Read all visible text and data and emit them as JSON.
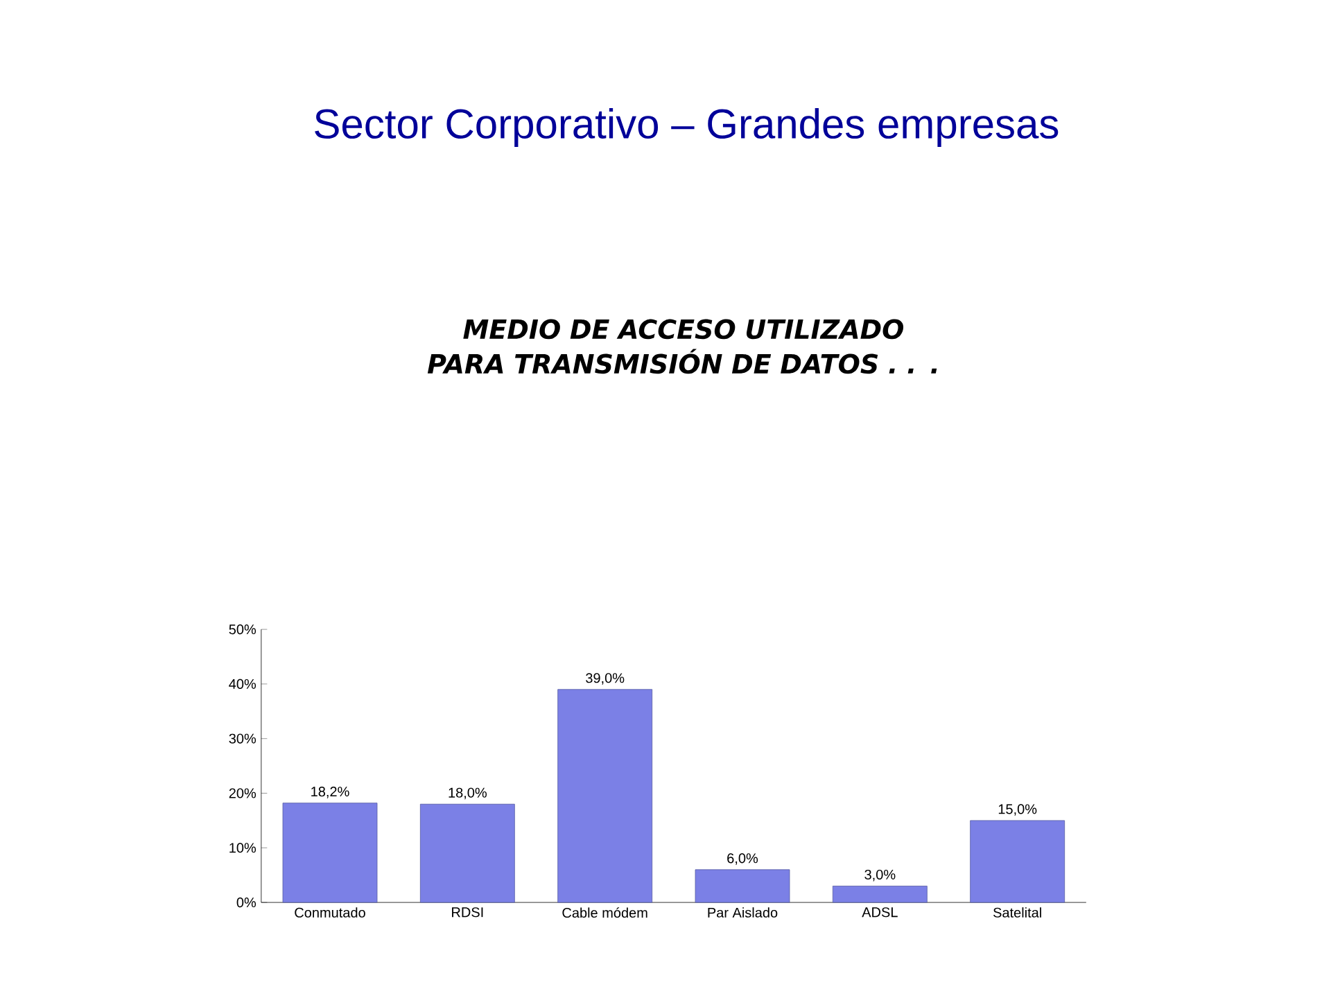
{
  "chart_data": {
    "type": "bar",
    "title": "Sector Corporativo – Grandes empresas",
    "subtitle": "MEDIO DE ACCESO UTILIZADO PARA TRANSMISIÓN DE DATOS . . .",
    "categories": [
      "Conmutado",
      "RDSI",
      "Cable módem",
      "Par Aislado",
      "ADSL",
      "Satelital"
    ],
    "values": [
      18.2,
      18.0,
      39.0,
      6.0,
      3.0,
      15.0
    ],
    "value_labels": [
      "18,2%",
      "18,0%",
      "39,0%",
      "6,0%",
      "3,0%",
      "15,0%"
    ],
    "color": "#7b80e6",
    "ylim": [
      0,
      50
    ],
    "yticks": [
      {
        "value": 0,
        "label": "0%"
      },
      {
        "value": 10,
        "label": "10%"
      },
      {
        "value": 20,
        "label": "20%"
      },
      {
        "value": 30,
        "label": "30%"
      },
      {
        "value": 40,
        "label": "40%"
      },
      {
        "value": 50,
        "label": "50%"
      }
    ],
    "grid": false
  }
}
